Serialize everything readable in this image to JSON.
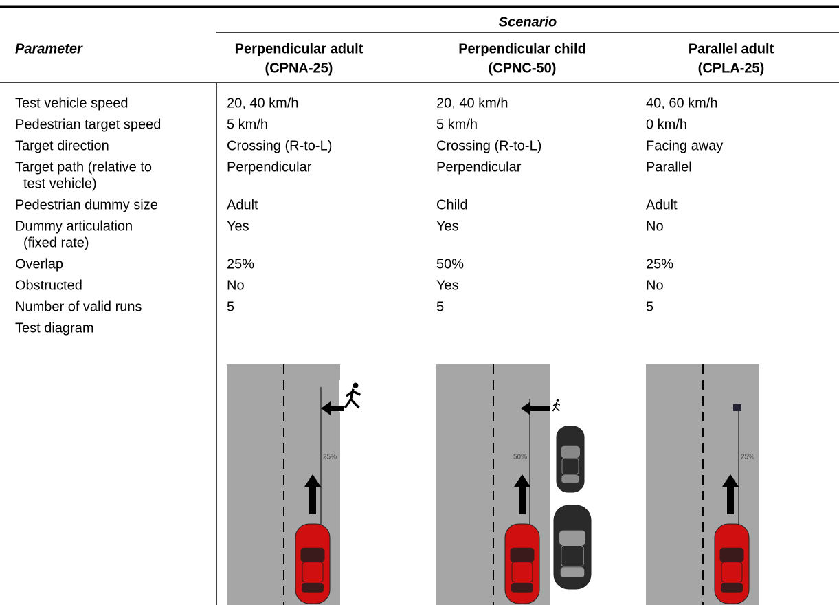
{
  "header": {
    "scenario": "Scenario",
    "parameter": "Parameter",
    "columns": [
      {
        "name": "Perpendicular adult",
        "code": "(CPNA-25)"
      },
      {
        "name": "Perpendicular child",
        "code": "(CPNC-50)"
      },
      {
        "name": "Parallel adult",
        "code": "(CPLA-25)"
      }
    ]
  },
  "rows": [
    {
      "parameter": [
        "Test vehicle speed"
      ],
      "values": [
        "20, 40 km/h",
        "20, 40 km/h",
        "40, 60 km/h"
      ]
    },
    {
      "parameter": [
        "Pedestrian target speed"
      ],
      "values": [
        "5 km/h",
        "5 km/h",
        "0 km/h"
      ]
    },
    {
      "parameter": [
        "Target direction"
      ],
      "values": [
        "Crossing (R-to-L)",
        "Crossing (R-to-L)",
        "Facing away"
      ]
    },
    {
      "parameter": [
        "Target path (relative to",
        "test vehicle)"
      ],
      "values": [
        "Perpendicular",
        "Perpendicular",
        "Parallel"
      ]
    },
    {
      "parameter": [
        "Pedestrian dummy size"
      ],
      "values": [
        "Adult",
        "Child",
        "Adult"
      ]
    },
    {
      "parameter": [
        "Dummy articulation",
        "(fixed rate)"
      ],
      "values": [
        "Yes",
        "Yes",
        "No"
      ]
    },
    {
      "parameter": [
        "Overlap"
      ],
      "values": [
        "25%",
        "50%",
        "25%"
      ]
    },
    {
      "parameter": [
        "Obstructed"
      ],
      "values": [
        "No",
        "Yes",
        "No"
      ]
    },
    {
      "parameter": [
        "Number of valid runs"
      ],
      "values": [
        "5",
        "5",
        "5"
      ]
    },
    {
      "parameter": [
        "Test diagram"
      ],
      "values": []
    }
  ],
  "diagrams": [
    {
      "overlap_label": "25%"
    },
    {
      "overlap_label": "50%"
    },
    {
      "overlap_label": "25%"
    }
  ]
}
